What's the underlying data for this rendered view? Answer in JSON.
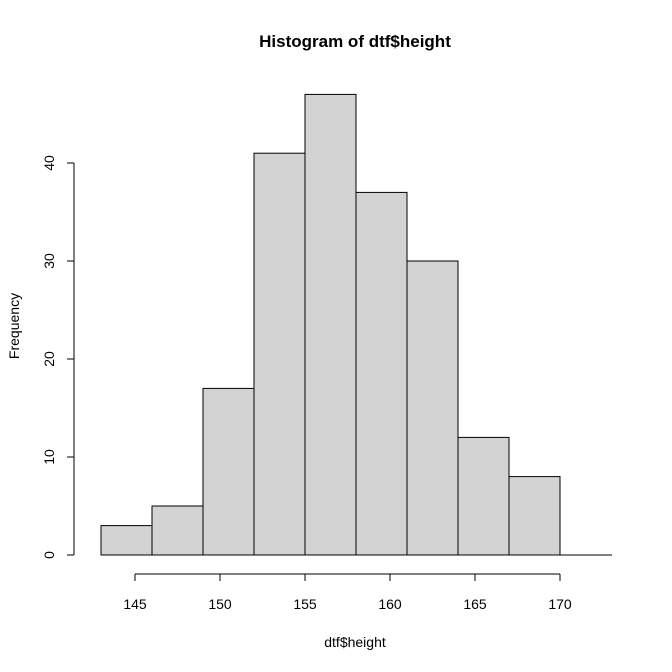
{
  "chart_data": {
    "type": "bar",
    "title": "Histogram of dtf$height",
    "xlabel": "dtf$height",
    "ylabel": "Frequency",
    "bins": [
      {
        "start": 143,
        "end": 146,
        "count": 3
      },
      {
        "start": 146,
        "end": 149,
        "count": 5
      },
      {
        "start": 149,
        "end": 152,
        "count": 17
      },
      {
        "start": 152,
        "end": 155,
        "count": 41
      },
      {
        "start": 155,
        "end": 158,
        "count": 47
      },
      {
        "start": 158,
        "end": 161,
        "count": 37
      },
      {
        "start": 161,
        "end": 164,
        "count": 30
      },
      {
        "start": 164,
        "end": 167,
        "count": 12
      },
      {
        "start": 167,
        "end": 170,
        "count": 8
      }
    ],
    "xticks": [
      145,
      150,
      155,
      160,
      165,
      170
    ],
    "yticks": [
      0,
      10,
      20,
      30,
      40
    ],
    "bar_color": "#d3d3d3",
    "grid": false
  }
}
